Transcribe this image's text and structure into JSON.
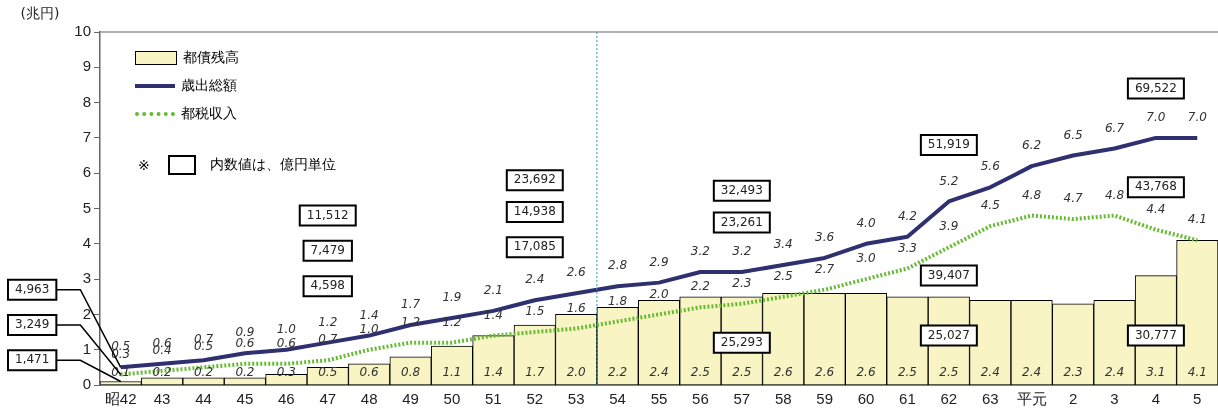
{
  "chart_data": {
    "type": "bar",
    "ylabel": "(兆円)",
    "categories": [
      "昭42",
      "43",
      "44",
      "45",
      "46",
      "47",
      "48",
      "49",
      "50",
      "51",
      "52",
      "53",
      "54",
      "55",
      "56",
      "57",
      "58",
      "59",
      "60",
      "61",
      "62",
      "63",
      "平元",
      "2",
      "3",
      "4",
      "5"
    ],
    "series": [
      {
        "name": "都債残高",
        "color": "#f8f4c4",
        "values": [
          0.1,
          0.2,
          0.2,
          0.2,
          0.3,
          0.5,
          0.6,
          0.8,
          1.1,
          1.4,
          1.7,
          2.0,
          2.2,
          2.4,
          2.5,
          2.5,
          2.6,
          2.6,
          2.6,
          2.5,
          2.5,
          2.4,
          2.4,
          2.3,
          2.4,
          3.1,
          4.1
        ],
        "value_labels": [
          "0.1",
          "0.2",
          "0.2",
          "0.2",
          "0.3",
          "0.5",
          "0.6",
          "0.8",
          "1.1",
          "1.4",
          "1.7",
          "2.0",
          "2.2",
          "2.4",
          "2.5",
          "2.5",
          "2.6",
          "2.6",
          "2.6",
          "2.5",
          "2.5",
          "2.4",
          "2.4",
          "2.3",
          "2.4",
          "3.1",
          "4.1"
        ]
      },
      {
        "name": "歳出総額",
        "type": "line",
        "color": "#2e3070",
        "line_style": "solid",
        "values": [
          0.5,
          0.6,
          0.7,
          0.9,
          1.0,
          1.2,
          1.4,
          1.7,
          1.9,
          2.1,
          2.4,
          2.6,
          2.8,
          2.9,
          3.2,
          3.2,
          3.4,
          3.6,
          4.0,
          4.2,
          5.2,
          5.6,
          6.2,
          6.5,
          6.7,
          7.0,
          7.0
        ],
        "value_labels": [
          "0.5",
          "0.6",
          "0.7",
          "0.9",
          "1.0",
          "1.2",
          "1.4",
          "1.7",
          "1.9",
          "2.1",
          "2.4",
          "2.6",
          "2.8",
          "2.9",
          "3.2",
          "3.2",
          "3.4",
          "3.6",
          "4.0",
          "4.2",
          "5.2",
          "5.6",
          "6.2",
          "6.5",
          "6.7",
          "7.0",
          "7.0"
        ]
      },
      {
        "name": "都税収入",
        "type": "line",
        "color": "#66bb33",
        "line_style": "dotted",
        "values": [
          0.3,
          0.4,
          0.5,
          0.6,
          0.6,
          0.7,
          1.0,
          1.2,
          1.2,
          1.4,
          1.5,
          1.6,
          1.8,
          2.0,
          2.2,
          2.3,
          2.5,
          2.7,
          3.0,
          3.3,
          3.9,
          4.5,
          4.8,
          4.7,
          4.8,
          4.4,
          4.1
        ],
        "value_labels": [
          "0.3",
          "0.4",
          "0.5",
          "0.6",
          "0.6",
          "0.7",
          "1.0",
          "1.2",
          "1.2",
          "1.4",
          "1.5",
          "1.6",
          "1.8",
          "2.0",
          "2.2",
          "2.3",
          "2.5",
          "2.7",
          "3.0",
          "3.3",
          "3.9",
          "4.5",
          "4.8",
          "4.7",
          "4.8",
          "4.4",
          "4.1"
        ]
      }
    ],
    "ylim": [
      0,
      10
    ],
    "yticks": [
      0,
      1,
      2,
      3,
      4,
      5,
      6,
      7,
      8,
      9,
      10
    ],
    "grid": false,
    "legend": "top left",
    "marker": "none",
    "ref_lines": [
      {
        "axis": "x",
        "value": "53",
        "color": "#3399bb",
        "line_style": "dotted"
      }
    ],
    "annotations": [
      "※",
      "内数値は、億円単位",
      {
        "text": "4,963",
        "x": "昭42",
        "y": 0.5
      },
      {
        "text": "3,249",
        "x": "昭42",
        "y": 0.3
      },
      {
        "text": "1,471",
        "x": "昭42",
        "y": 0.1
      },
      "11,512",
      "7,479",
      "4,598",
      "23,692",
      "14,938",
      "17,085",
      "32,493",
      "23,261",
      "25,293",
      "51,919",
      "39,407",
      "25,027",
      "69,522",
      "43,768",
      "30,777"
    ]
  }
}
